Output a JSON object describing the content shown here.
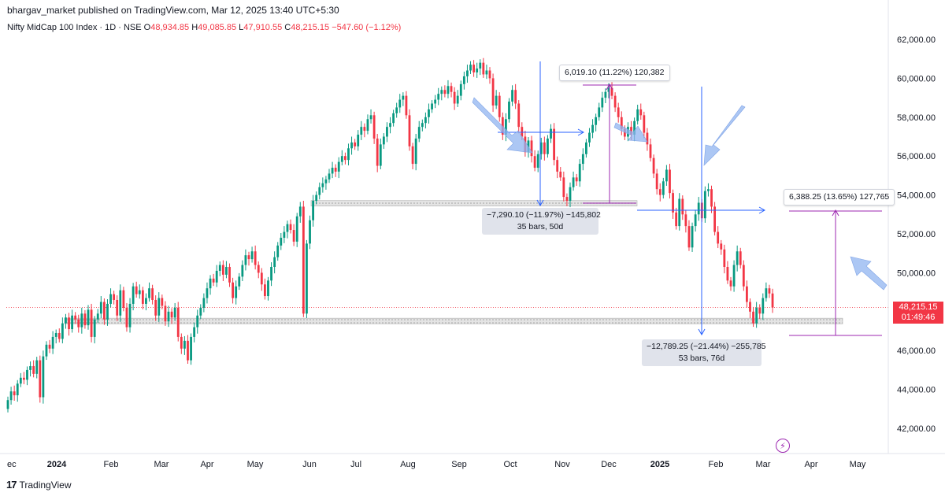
{
  "header": {
    "publisher": "bhargav_market published on TradingView.com, Mar 12, 2025 13:40 UTC+5:30"
  },
  "symbol": {
    "name": "Nifty MidCap 100 Index · 1D · NSE",
    "o_label": "O",
    "o_value": "48,934.85",
    "h_label": "H",
    "h_value": "49,085.85",
    "l_label": "L",
    "l_value": "47,910.55",
    "c_label": "C",
    "c_value": "48,215.15",
    "change": "−547.60 (−1.12%)"
  },
  "price_tag": {
    "price": "48,215.15",
    "countdown": "01:49:46"
  },
  "measurements": [
    {
      "line1": "−7,290.10 (−11.97%) −145,802",
      "line2": "35 bars, 50d"
    },
    {
      "line1": "6,019.10 (11.22%) 120,382"
    },
    {
      "line1": "−12,789.25 (−21.44%) −255,785",
      "line2": "53 bars, 76d"
    },
    {
      "line1": "6,388.25 (13.65%) 127,765"
    }
  ],
  "brand": {
    "logo": "17",
    "name": "TradingView"
  },
  "colors": {
    "up": "#089981",
    "down": "#f23645",
    "measure_blue": "#2962ff",
    "measure_purple": "#9c27b0",
    "arrow": "#90b4f0"
  },
  "icons": {
    "alert": "flash-icon",
    "logo": "tradingview-logo-icon"
  },
  "chart_data": {
    "type": "candlestick",
    "y_axis": {
      "ticks": [
        "42,000.00",
        "44,000.00",
        "46,000.00",
        "48,000.00",
        "50,000.00",
        "52,000.00",
        "54,000.00",
        "56,000.00",
        "58,000.00",
        "60,000.00",
        "62,000.00"
      ],
      "range": [
        41400,
        62500
      ]
    },
    "x_axis": {
      "ticks": [
        "ec",
        "2024",
        "Feb",
        "Mar",
        "Apr",
        "May",
        "Jun",
        "Jul",
        "Aug",
        "Sep",
        "Oct",
        "Nov",
        "Dec",
        "2025",
        "Feb",
        "Mar",
        "Apr",
        "May"
      ]
    },
    "last_price": 48215.15,
    "support_zones": [
      53550,
      47500
    ],
    "series": [
      {
        "values": [
          [
            43000,
            43450
          ],
          [
            43450,
            43900
          ],
          [
            43900,
            43700
          ],
          [
            43700,
            44300
          ],
          [
            44300,
            44600
          ],
          [
            44600,
            44500
          ],
          [
            44500,
            45000
          ],
          [
            45000,
            45200
          ],
          [
            45200,
            44800
          ],
          [
            44800,
            45500
          ],
          [
            45500,
            43600
          ],
          [
            43600,
            45700
          ],
          [
            45700,
            46300
          ],
          [
            46300,
            46100
          ],
          [
            46100,
            46700
          ],
          [
            46700,
            46900
          ],
          [
            46900,
            46600
          ],
          [
            46600,
            47400
          ],
          [
            47400,
            47700
          ],
          [
            47700,
            47100
          ],
          [
            47100,
            47800
          ],
          [
            47800,
            47600
          ],
          [
            47600,
            47200
          ],
          [
            47200,
            47900
          ],
          [
            47900,
            47300
          ],
          [
            47300,
            48100
          ],
          [
            48100,
            46700
          ],
          [
            46700,
            47600
          ],
          [
            47600,
            47900
          ],
          [
            47900,
            48500
          ],
          [
            48500,
            47600
          ],
          [
            47600,
            48400
          ],
          [
            48400,
            48900
          ],
          [
            48900,
            48600
          ],
          [
            48600,
            47800
          ],
          [
            47800,
            49100
          ],
          [
            49100,
            48200
          ],
          [
            48200,
            47200
          ],
          [
            47200,
            48400
          ],
          [
            48400,
            49300
          ],
          [
            49300,
            48900
          ],
          [
            48900,
            49100
          ],
          [
            49100,
            48400
          ],
          [
            48400,
            48700
          ],
          [
            48700,
            49200
          ],
          [
            49200,
            48600
          ],
          [
            48600,
            47800
          ],
          [
            47800,
            48700
          ],
          [
            48700,
            48300
          ],
          [
            48300,
            47500
          ],
          [
            47500,
            48000
          ],
          [
            48000,
            47700
          ],
          [
            47700,
            48200
          ],
          [
            48200,
            46700
          ],
          [
            46700,
            46100
          ],
          [
            46100,
            46500
          ],
          [
            46500,
            45500
          ],
          [
            45500,
            46700
          ],
          [
            46700,
            47200
          ],
          [
            47200,
            47800
          ],
          [
            47800,
            48200
          ],
          [
            48200,
            48700
          ],
          [
            48700,
            49200
          ],
          [
            49200,
            49700
          ],
          [
            49700,
            49500
          ],
          [
            49500,
            50100
          ],
          [
            50100,
            50400
          ],
          [
            50400,
            49900
          ],
          [
            49900,
            50300
          ],
          [
            50300,
            49500
          ],
          [
            49500,
            48700
          ],
          [
            48700,
            49300
          ],
          [
            49300,
            49800
          ],
          [
            49800,
            50400
          ],
          [
            50400,
            50900
          ],
          [
            50900,
            50700
          ],
          [
            50700,
            51100
          ],
          [
            51100,
            50400
          ],
          [
            50400,
            50000
          ],
          [
            50000,
            49400
          ],
          [
            49400,
            48800
          ],
          [
            48800,
            49600
          ],
          [
            49600,
            50300
          ],
          [
            50300,
            50800
          ],
          [
            50800,
            51400
          ],
          [
            51400,
            51800
          ],
          [
            51800,
            52100
          ],
          [
            52100,
            52500
          ],
          [
            52500,
            52200
          ],
          [
            52200,
            51600
          ],
          [
            51600,
            52900
          ],
          [
            52900,
            53400
          ],
          [
            53400,
            47900
          ],
          [
            47900,
            51500
          ],
          [
            51500,
            52700
          ],
          [
            52700,
            53700
          ],
          [
            53700,
            54000
          ],
          [
            54000,
            54400
          ],
          [
            54400,
            54600
          ],
          [
            54600,
            54800
          ],
          [
            54800,
            55100
          ],
          [
            55100,
            55400
          ],
          [
            55400,
            55200
          ],
          [
            55200,
            55700
          ],
          [
            55700,
            56000
          ],
          [
            56000,
            55800
          ],
          [
            55800,
            56400
          ],
          [
            56400,
            56700
          ],
          [
            56700,
            56500
          ],
          [
            56500,
            57100
          ],
          [
            57100,
            57500
          ],
          [
            57500,
            57300
          ],
          [
            57300,
            57900
          ],
          [
            57900,
            58100
          ],
          [
            58100,
            56900
          ],
          [
            56900,
            55500
          ],
          [
            55500,
            56600
          ],
          [
            56600,
            57000
          ],
          [
            57000,
            57500
          ],
          [
            57500,
            57700
          ],
          [
            57700,
            58200
          ],
          [
            58200,
            58500
          ],
          [
            58500,
            58900
          ],
          [
            58900,
            59100
          ],
          [
            59100,
            58100
          ],
          [
            58100,
            56500
          ],
          [
            56500,
            55600
          ],
          [
            55600,
            56900
          ],
          [
            56900,
            57500
          ],
          [
            57500,
            57700
          ],
          [
            57700,
            58000
          ],
          [
            58000,
            58400
          ],
          [
            58400,
            58700
          ],
          [
            58700,
            58900
          ],
          [
            58900,
            59200
          ],
          [
            59200,
            59400
          ],
          [
            59400,
            59200
          ],
          [
            59200,
            59600
          ],
          [
            59600,
            59300
          ],
          [
            59300,
            58700
          ],
          [
            58700,
            59100
          ],
          [
            59100,
            59700
          ],
          [
            59700,
            60100
          ],
          [
            60100,
            60400
          ],
          [
            60400,
            60700
          ],
          [
            60700,
            60300
          ],
          [
            60300,
            60500
          ],
          [
            60500,
            60800
          ],
          [
            60800,
            60200
          ],
          [
            60200,
            60400
          ],
          [
            60400,
            60000
          ],
          [
            60000,
            58600
          ],
          [
            58600,
            59100
          ],
          [
            59100,
            58000
          ],
          [
            58000,
            57100
          ],
          [
            57100,
            57900
          ],
          [
            57900,
            58800
          ],
          [
            58800,
            59400
          ],
          [
            59400,
            58700
          ],
          [
            58700,
            57500
          ],
          [
            57500,
            57000
          ],
          [
            57000,
            56200
          ],
          [
            56200,
            56800
          ],
          [
            56800,
            56000
          ],
          [
            56000,
            55400
          ],
          [
            55400,
            56100
          ],
          [
            56100,
            56700
          ],
          [
            56700,
            56100
          ],
          [
            56100,
            56900
          ],
          [
            56900,
            57400
          ],
          [
            57400,
            55800
          ],
          [
            55800,
            55200
          ],
          [
            55200,
            54900
          ],
          [
            54900,
            53900
          ],
          [
            53900,
            53700
          ],
          [
            53700,
            54400
          ],
          [
            54400,
            54900
          ],
          [
            54900,
            54700
          ],
          [
            54700,
            55600
          ],
          [
            55600,
            56100
          ],
          [
            56100,
            56700
          ],
          [
            56700,
            57200
          ],
          [
            57200,
            57600
          ],
          [
            57600,
            58000
          ],
          [
            58000,
            58500
          ],
          [
            58500,
            59000
          ],
          [
            59000,
            59300
          ],
          [
            59300,
            59500
          ],
          [
            59500,
            59100
          ],
          [
            59100,
            58500
          ],
          [
            58500,
            58000
          ],
          [
            58000,
            57400
          ],
          [
            57400,
            57000
          ],
          [
            57000,
            57500
          ],
          [
            57500,
            57100
          ],
          [
            57100,
            57800
          ],
          [
            57800,
            58400
          ],
          [
            58400,
            58100
          ],
          [
            58100,
            57200
          ],
          [
            57200,
            56600
          ],
          [
            56600,
            55900
          ],
          [
            55900,
            55100
          ],
          [
            55100,
            54300
          ],
          [
            54300,
            54000
          ],
          [
            54000,
            54700
          ],
          [
            54700,
            55300
          ],
          [
            55300,
            54100
          ],
          [
            54100,
            53100
          ],
          [
            53100,
            52400
          ],
          [
            52400,
            53800
          ],
          [
            53800,
            53000
          ],
          [
            53000,
            52400
          ],
          [
            52400,
            51300
          ],
          [
            51300,
            52400
          ],
          [
            52400,
            53000
          ],
          [
            53000,
            53600
          ],
          [
            53600,
            52800
          ],
          [
            52800,
            54200
          ],
          [
            54200,
            54300
          ],
          [
            54300,
            53400
          ],
          [
            53400,
            52100
          ],
          [
            52100,
            51500
          ],
          [
            51500,
            51200
          ],
          [
            51200,
            50300
          ],
          [
            50300,
            49600
          ],
          [
            49600,
            49300
          ],
          [
            49300,
            50400
          ],
          [
            50400,
            51100
          ],
          [
            51100,
            50400
          ],
          [
            50400,
            49300
          ],
          [
            49300,
            48500
          ],
          [
            48500,
            48000
          ],
          [
            48000,
            47400
          ],
          [
            47400,
            48200
          ],
          [
            48200,
            47900
          ],
          [
            47900,
            48700
          ],
          [
            48700,
            49200
          ],
          [
            49200,
            48934.85
          ],
          [
            48934.85,
            48215.15
          ]
        ]
      }
    ]
  }
}
